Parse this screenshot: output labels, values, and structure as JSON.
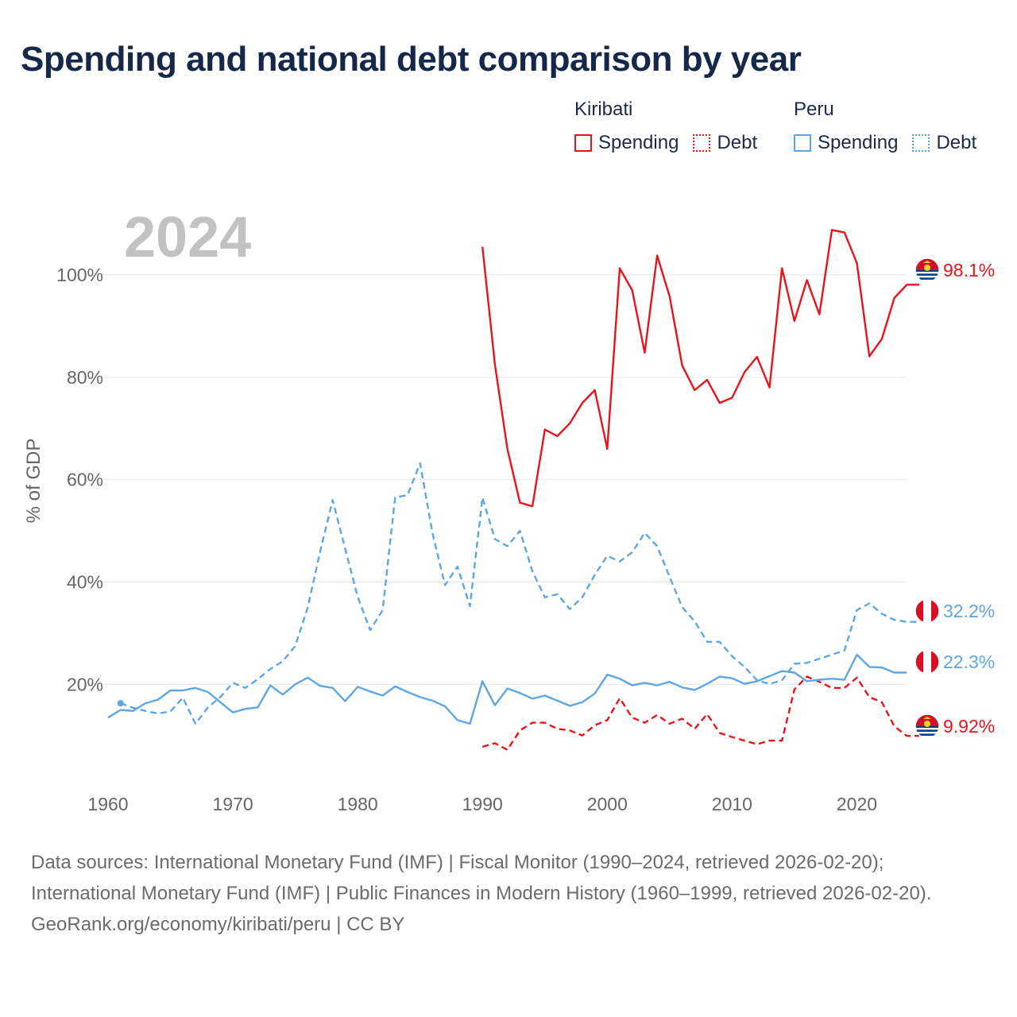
{
  "title": "Spending and national debt comparison by year",
  "legend": {
    "groups": [
      {
        "country": "Kiribati",
        "items": [
          {
            "label": "Spending",
            "color": "#e8141b",
            "style": "solid"
          },
          {
            "label": "Debt",
            "color": "#e8141b",
            "style": "dotted"
          }
        ]
      },
      {
        "country": "Peru",
        "items": [
          {
            "label": "Spending",
            "color": "#5ea6e6",
            "style": "solid"
          },
          {
            "label": "Debt",
            "color": "#5ea6e6",
            "style": "dotted"
          }
        ]
      }
    ]
  },
  "sources": {
    "line1": "Data sources: International Monetary Fund (IMF) | Fiscal Monitor (1990–2024, retrieved 2026-02-20); International Monetary Fund (IMF) | Public Finances in Modern History (1960–1999, retrieved 2026-02-20).",
    "line2": "GeoRank.org/economy/kiribati/peru | CC BY"
  },
  "chart_data": {
    "type": "line",
    "year_label": "2024",
    "ylabel": "% of GDP",
    "xlim": [
      1960,
      2025
    ],
    "ylim": [
      -2,
      116
    ],
    "x_ticks": [
      1960,
      1970,
      1980,
      1990,
      2000,
      2010,
      2020
    ],
    "y_ticks": [
      20,
      40,
      60,
      80,
      100
    ],
    "y_tick_labels": [
      "20%",
      "40%",
      "60%",
      "80%",
      "100%"
    ],
    "series": [
      {
        "name": "Kiribati Spending",
        "color": "#e8141b",
        "dashed": false,
        "end_label": "98.1%",
        "flag": "kiribati",
        "x": [
          1990,
          1991,
          1992,
          1993,
          1994,
          1995,
          1996,
          1997,
          1998,
          1999,
          2000,
          2001,
          2002,
          2003,
          2004,
          2005,
          2006,
          2007,
          2008,
          2009,
          2010,
          2011,
          2012,
          2013,
          2014,
          2015,
          2016,
          2017,
          2018,
          2019,
          2020,
          2021,
          2022,
          2023,
          2024,
          2025
        ],
        "y": [
          105.5,
          82.5,
          66,
          55.5,
          54.8,
          69.8,
          68.5,
          71,
          75,
          77.5,
          66,
          101.3,
          97,
          84.8,
          103.8,
          95.8,
          82.3,
          77.5,
          79.5,
          75,
          76,
          81,
          84,
          78,
          101.3,
          91,
          99,
          92.3,
          108.8,
          108.3,
          102.3,
          84.1,
          87.5,
          95.5,
          98.1,
          98.1
        ]
      },
      {
        "name": "Kiribati Debt",
        "color": "#e8141b",
        "dashed": true,
        "end_label": "9.92%",
        "flag": "kiribati",
        "x": [
          1990,
          1991,
          1992,
          1993,
          1994,
          1995,
          1996,
          1997,
          1998,
          1999,
          2000,
          2001,
          2002,
          2003,
          2004,
          2005,
          2006,
          2007,
          2008,
          2009,
          2010,
          2011,
          2012,
          2013,
          2014,
          2015,
          2016,
          2017,
          2018,
          2019,
          2020,
          2021,
          2022,
          2023,
          2024,
          2025
        ],
        "y": [
          7.8,
          8.5,
          7.2,
          11,
          12.5,
          12.5,
          11.3,
          11,
          10,
          12,
          13,
          17.3,
          13.5,
          12.5,
          14,
          12.3,
          13.3,
          11.3,
          14.2,
          10.5,
          9.7,
          9,
          8.3,
          9,
          9,
          19,
          21.5,
          20.5,
          19.3,
          19.3,
          21.3,
          17.5,
          16.5,
          11.8,
          9.92,
          9.92
        ]
      },
      {
        "name": "Peru Spending",
        "color": "#5ea6e6",
        "dashed": false,
        "end_label": "22.3%",
        "flag": "peru",
        "x": [
          1960,
          1961,
          1962,
          1963,
          1964,
          1965,
          1966,
          1967,
          1968,
          1969,
          1970,
          1971,
          1972,
          1973,
          1974,
          1975,
          1976,
          1977,
          1978,
          1979,
          1980,
          1981,
          1982,
          1983,
          1984,
          1985,
          1986,
          1987,
          1988,
          1989,
          1990,
          1991,
          1992,
          1993,
          1994,
          1995,
          1996,
          1997,
          1998,
          1999,
          2000,
          2001,
          2002,
          2003,
          2004,
          2005,
          2006,
          2007,
          2008,
          2009,
          2010,
          2011,
          2012,
          2013,
          2014,
          2015,
          2016,
          2017,
          2018,
          2019,
          2020,
          2021,
          2022,
          2023,
          2024
        ],
        "y": [
          13.5,
          15,
          14.8,
          16.3,
          17,
          18.8,
          18.8,
          19.3,
          18.5,
          16.5,
          14.5,
          15.2,
          15.5,
          19.8,
          18,
          20,
          21.3,
          19.7,
          19.3,
          16.7,
          19.5,
          18.6,
          17.8,
          19.6,
          18.5,
          17.5,
          16.8,
          15.7,
          13,
          12.3,
          20.6,
          15.9,
          19.2,
          18.3,
          17.2,
          17.8,
          16.8,
          15.8,
          16.5,
          18.2,
          21.9,
          21.1,
          19.8,
          20.3,
          19.8,
          20.5,
          19.4,
          18.9,
          20.1,
          21.5,
          21.2,
          20.1,
          20.6,
          21.6,
          22.6,
          22.3,
          20.6,
          20.9,
          21.1,
          20.9,
          25.8,
          23.4,
          23.3,
          22.3,
          22.3
        ]
      },
      {
        "name": "Peru Debt",
        "color": "#5ea6e6",
        "dashed": true,
        "end_label": "32.2%",
        "flag": "peru",
        "x": [
          1961,
          1962,
          1963,
          1964,
          1965,
          1966,
          1967,
          1968,
          1969,
          1970,
          1971,
          1972,
          1973,
          1974,
          1975,
          1976,
          1977,
          1978,
          1979,
          1980,
          1981,
          1982,
          1983,
          1984,
          1985,
          1986,
          1987,
          1988,
          1989,
          1990,
          1991,
          1992,
          1993,
          1994,
          1995,
          1996,
          1997,
          1998,
          1999,
          2000,
          2001,
          2002,
          2003,
          2004,
          2005,
          2006,
          2007,
          2008,
          2009,
          2010,
          2011,
          2012,
          2013,
          2014,
          2015,
          2016,
          2017,
          2018,
          2019,
          2020,
          2021,
          2022,
          2023,
          2024,
          2025
        ],
        "y": [
          16.3,
          15.4,
          14.8,
          14.3,
          14.7,
          17.4,
          12.3,
          15.5,
          17.5,
          20.3,
          19.3,
          21,
          23,
          24.5,
          27.5,
          35,
          46,
          56,
          46.5,
          37.1,
          30.6,
          34.5,
          56.5,
          57,
          63.2,
          49.5,
          39.4,
          43,
          35.3,
          56.5,
          48.4,
          47,
          50,
          42.1,
          37,
          37.6,
          34.7,
          37,
          41.4,
          45.1,
          44,
          45.8,
          49.6,
          47,
          41,
          35.1,
          32.3,
          28.3,
          28.3,
          25.5,
          23.4,
          20.8,
          20.1,
          20.8,
          24,
          24.2,
          25,
          25.8,
          26.6,
          34.5,
          35.8,
          33.8,
          32.6,
          32.2,
          32.2
        ]
      }
    ]
  }
}
